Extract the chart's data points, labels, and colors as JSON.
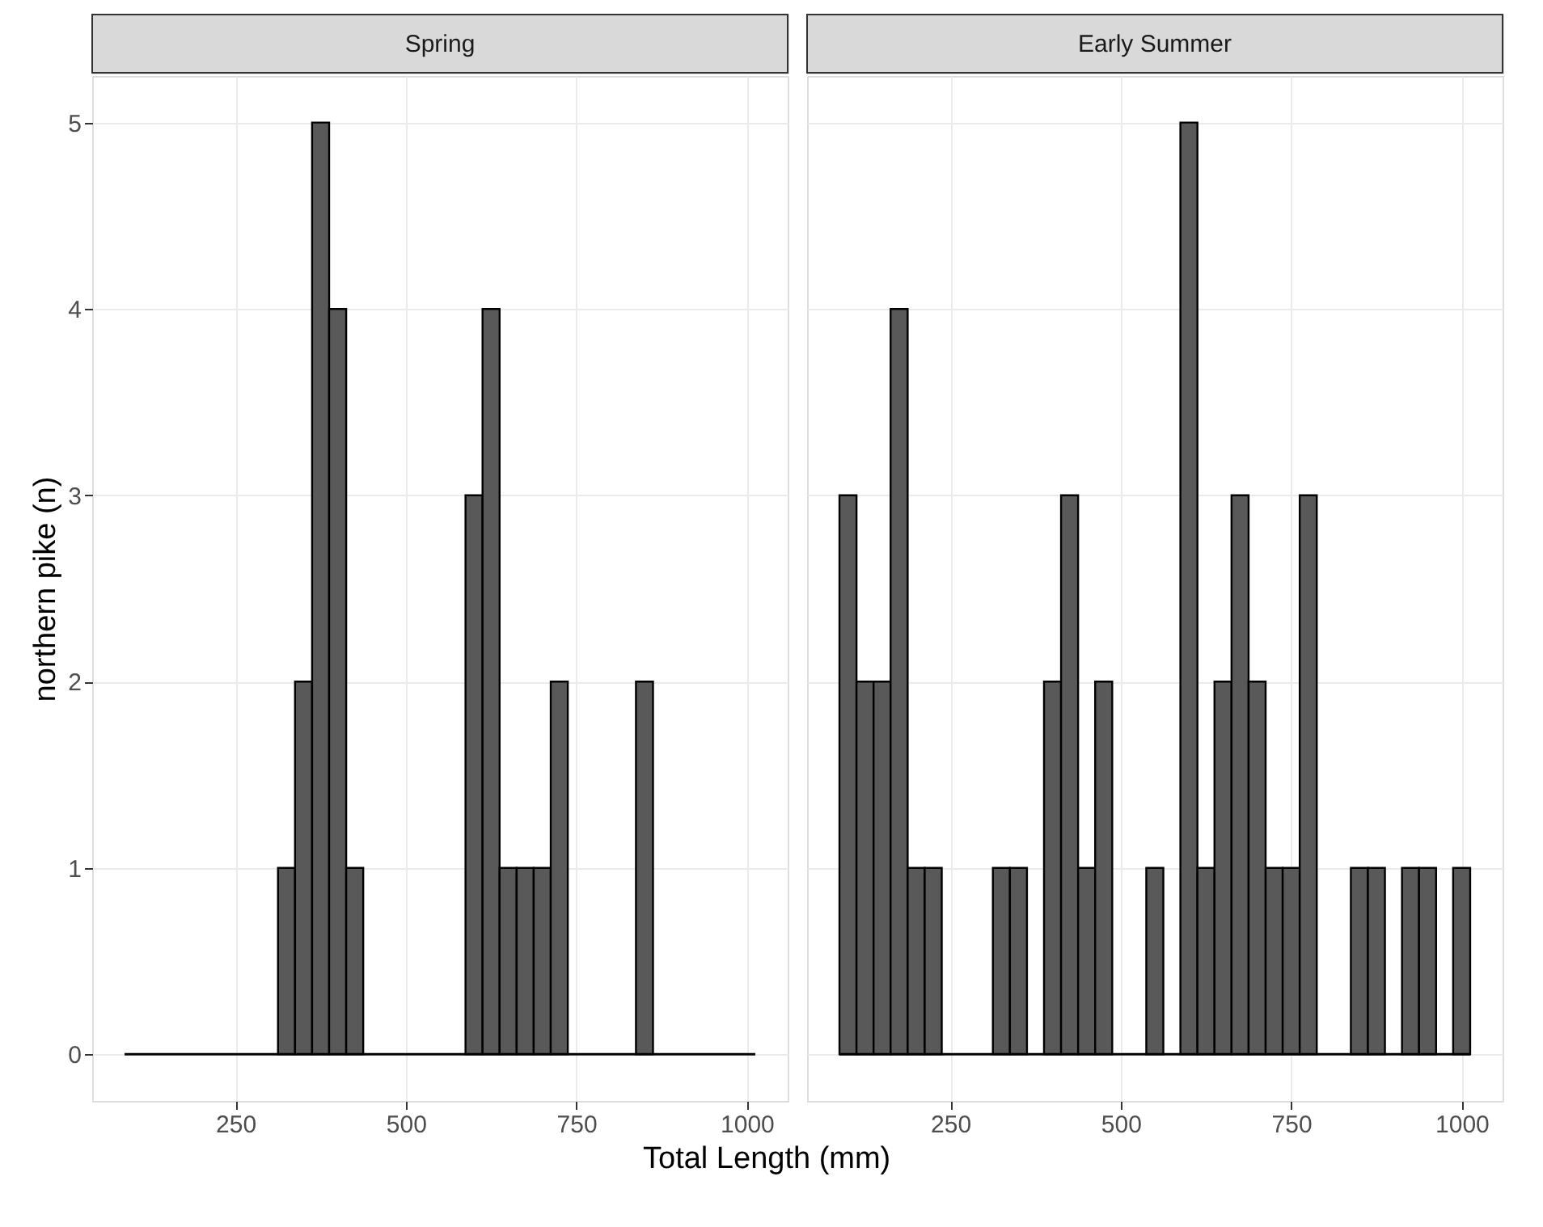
{
  "chart_data": [
    {
      "type": "histogram",
      "title": "Spring",
      "xlabel": "Total Length (mm)",
      "ylabel": "northern pike (n)",
      "bins": [
        87.5,
        112.5,
        137.5,
        162.5,
        187.5,
        212.5,
        237.5,
        262.5,
        287.5,
        312.5,
        337.5,
        362.5,
        387.5,
        412.5,
        437.5,
        462.5,
        487.5,
        512.5,
        537.5,
        562.5,
        587.5,
        612.5,
        637.5,
        662.5,
        687.5,
        712.5,
        737.5,
        762.5,
        787.5,
        812.5,
        837.5,
        862.5,
        887.5,
        912.5,
        937.5,
        962.5,
        987.5,
        1012.5
      ],
      "values": [
        0,
        0,
        0,
        0,
        0,
        0,
        0,
        0,
        0,
        1,
        2,
        5,
        4,
        1,
        0,
        0,
        0,
        0,
        0,
        0,
        3,
        4,
        1,
        1,
        1,
        2,
        0,
        0,
        0,
        0,
        2,
        0,
        0,
        0,
        0,
        0,
        0
      ],
      "color": "#595959",
      "xlim": [
        40,
        1060
      ],
      "xticks": [
        250,
        500,
        750,
        1000
      ],
      "ylim": [
        -0.25,
        5.25
      ],
      "yticks": [
        0,
        1,
        2,
        3,
        4,
        5
      ],
      "grid": true,
      "ref_lines": [
        {
          "axis": "y",
          "value": 0,
          "color": "#000000"
        }
      ]
    },
    {
      "type": "histogram",
      "title": "Early Summer",
      "bins": [
        87.5,
        112.5,
        137.5,
        162.5,
        187.5,
        212.5,
        237.5,
        262.5,
        287.5,
        312.5,
        337.5,
        362.5,
        387.5,
        412.5,
        437.5,
        462.5,
        487.5,
        512.5,
        537.5,
        562.5,
        587.5,
        612.5,
        637.5,
        662.5,
        687.5,
        712.5,
        737.5,
        762.5,
        787.5,
        812.5,
        837.5,
        862.5,
        887.5,
        912.5,
        937.5,
        962.5,
        987.5,
        1012.5
      ],
      "values": [
        3,
        2,
        2,
        4,
        1,
        1,
        0,
        0,
        0,
        1,
        1,
        0,
        2,
        3,
        1,
        2,
        0,
        0,
        1,
        0,
        5,
        1,
        2,
        3,
        2,
        1,
        1,
        3,
        0,
        0,
        1,
        1,
        0,
        1,
        1,
        0,
        1
      ],
      "color": "#595959",
      "xlim": [
        40,
        1060
      ],
      "xticks": [
        250,
        500,
        750,
        1000
      ],
      "ylim": [
        -0.25,
        5.25
      ],
      "yticks": [
        0,
        1,
        2,
        3,
        4,
        5
      ],
      "grid": true,
      "tick_labels": "x",
      "ref_lines": [
        {
          "axis": "y",
          "value": 0,
          "color": "#000000"
        }
      ]
    }
  ]
}
